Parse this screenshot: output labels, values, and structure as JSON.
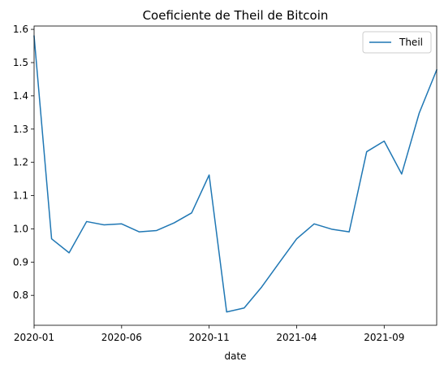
{
  "chart_data": {
    "type": "line",
    "title": "Coeficiente de Theil de Bitcoin",
    "xlabel": "date",
    "ylabel": "",
    "x": [
      "2020-01",
      "2020-02",
      "2020-03",
      "2020-04",
      "2020-05",
      "2020-06",
      "2020-07",
      "2020-08",
      "2020-09",
      "2020-10",
      "2020-11",
      "2020-12",
      "2021-01",
      "2021-02",
      "2021-03",
      "2021-04",
      "2021-05",
      "2021-06",
      "2021-07",
      "2021-08",
      "2021-09",
      "2021-10",
      "2021-11",
      "2021-12"
    ],
    "series": [
      {
        "name": "Theil",
        "color": "#1f77b4",
        "values": [
          1.58,
          0.97,
          0.928,
          1.022,
          1.012,
          1.015,
          0.991,
          0.995,
          1.018,
          1.048,
          1.162,
          0.75,
          0.762,
          0.825,
          0.898,
          0.97,
          1.015,
          0.999,
          0.991,
          1.232,
          1.264,
          1.165,
          1.348,
          1.478
        ]
      }
    ],
    "xlim": [
      "2020-01",
      "2021-12"
    ],
    "ylim": [
      0.71,
      1.61
    ],
    "x_ticks": [
      "2020-01",
      "2020-06",
      "2020-11",
      "2021-04",
      "2021-09"
    ],
    "y_ticks": [
      "0.8",
      "0.9",
      "1.0",
      "1.1",
      "1.2",
      "1.3",
      "1.4",
      "1.5",
      "1.6"
    ],
    "grid": false,
    "legend_position": "upper right"
  }
}
